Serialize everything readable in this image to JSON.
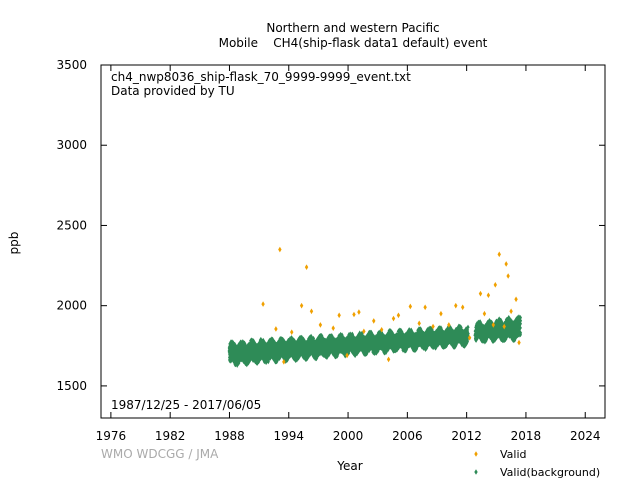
{
  "chart_data": {
    "type": "scatter",
    "title": "Northern and western Pacific",
    "subtitle": "Mobile    CH4(ship-flask data1 default) event",
    "xlabel": "Year",
    "ylabel": "ppb",
    "xlim": [
      1975,
      2026
    ],
    "ylim": [
      1300,
      3500
    ],
    "xticks": [
      1976,
      1982,
      1988,
      1994,
      2000,
      2006,
      2012,
      2018,
      2024
    ],
    "yticks": [
      1500,
      2000,
      2500,
      3000,
      3500
    ],
    "grid": false,
    "legend_position": "bottom-right",
    "annotation_file": "ch4_nwp8036_ship-flask_70_9999-9999_event.txt",
    "annotation_provider": "Data provided by TU",
    "annotation_period": "1987/12/25 - 2017/06/05",
    "credit": "WMO WDCGG / JMA",
    "series": [
      {
        "name": "Valid",
        "color": "#f0a000",
        "marker": "diamond",
        "points": [
          [
            1991.4,
            2010
          ],
          [
            1992.7,
            1855
          ],
          [
            1993.1,
            2350
          ],
          [
            1993.5,
            1650
          ],
          [
            1994.3,
            1835
          ],
          [
            1995.3,
            2000
          ],
          [
            1995.8,
            2240
          ],
          [
            1996.3,
            1965
          ],
          [
            1997.2,
            1880
          ],
          [
            1998.5,
            1860
          ],
          [
            1999.1,
            1940
          ],
          [
            1999.9,
            1690
          ],
          [
            2000.6,
            1945
          ],
          [
            2001.1,
            1960
          ],
          [
            2001.6,
            1840
          ],
          [
            2002.6,
            1905
          ],
          [
            2003.4,
            1850
          ],
          [
            2004.1,
            1665
          ],
          [
            2004.6,
            1920
          ],
          [
            2005.1,
            1940
          ],
          [
            2006.3,
            1995
          ],
          [
            2007.2,
            1890
          ],
          [
            2007.8,
            1990
          ],
          [
            2008.6,
            1870
          ],
          [
            2009.4,
            1950
          ],
          [
            2010.2,
            1880
          ],
          [
            2010.9,
            2000
          ],
          [
            2011.6,
            1990
          ],
          [
            2012.3,
            1800
          ],
          [
            2013.4,
            2075
          ],
          [
            2013.8,
            1950
          ],
          [
            2014.2,
            2065
          ],
          [
            2014.7,
            1880
          ],
          [
            2014.9,
            2130
          ],
          [
            2015.3,
            2320
          ],
          [
            2015.8,
            1870
          ],
          [
            2016.0,
            2260
          ],
          [
            2016.2,
            2185
          ],
          [
            2016.5,
            1965
          ],
          [
            2017.0,
            2040
          ],
          [
            2017.3,
            1770
          ]
        ]
      },
      {
        "name": "Valid(background)",
        "color": "#2e8b57",
        "marker": "diamond",
        "segments": [
          {
            "x": [
              1988.0,
              2012.1
            ],
            "lower": [
              1630,
              1755
            ],
            "upper": [
              1770,
              1870
            ]
          },
          {
            "x": [
              2012.9,
              2017.4
            ],
            "lower": [
              1775,
              1790
            ],
            "upper": [
              1890,
              1930
            ]
          }
        ],
        "seasonal_amplitude_ppb": 35
      }
    ]
  }
}
